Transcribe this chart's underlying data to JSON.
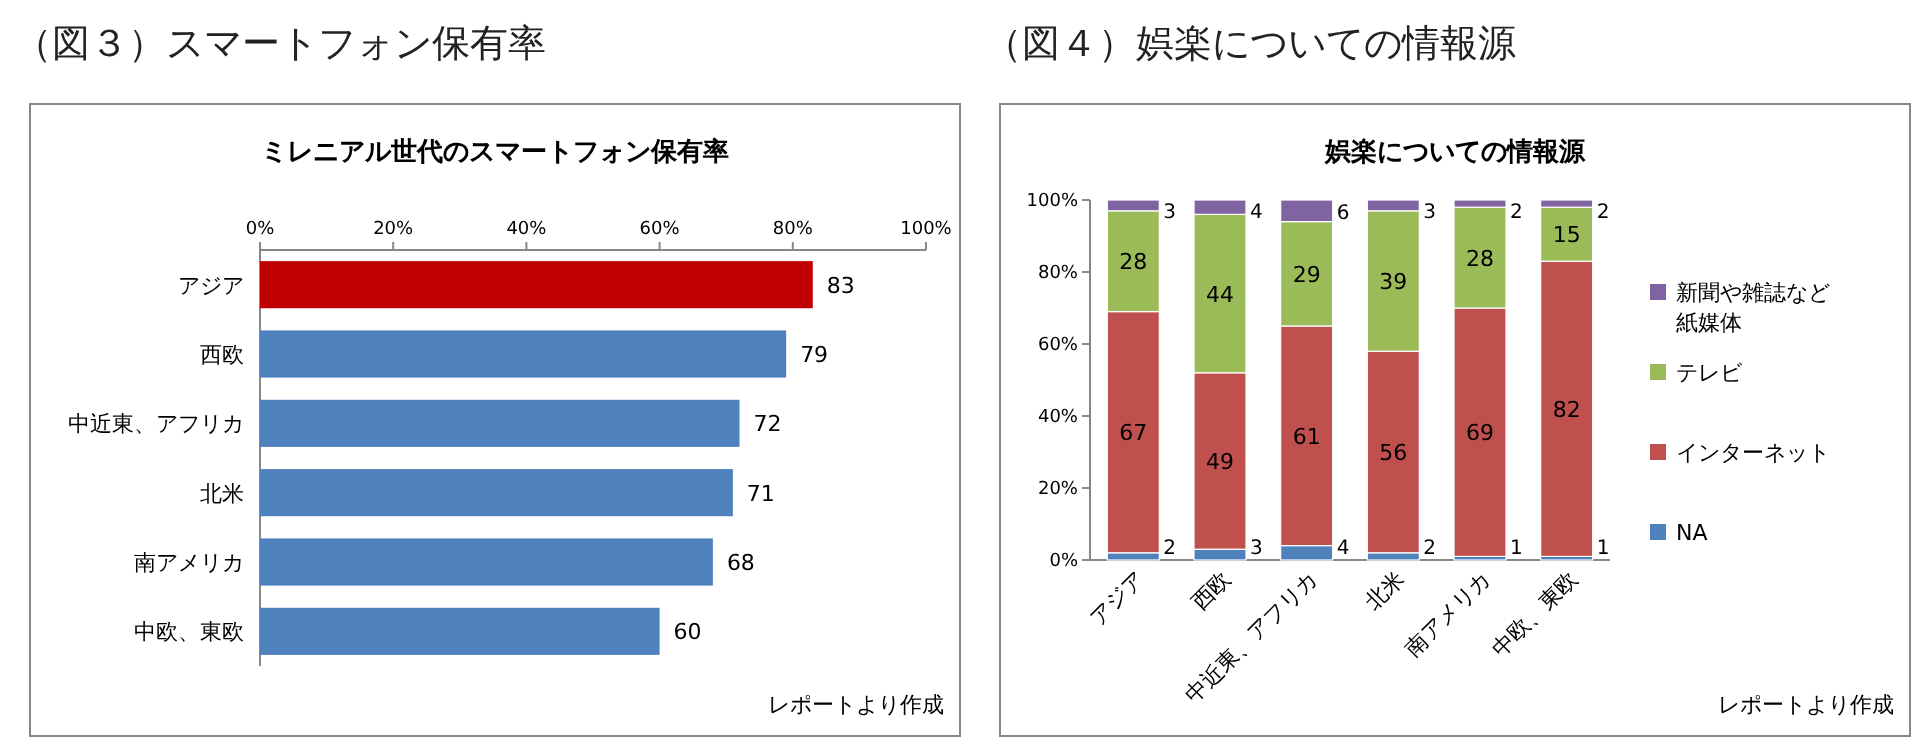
{
  "chart_data": [
    {
      "type": "bar",
      "orientation": "horizontal",
      "title": "（図３）スマートフォン保有率",
      "subtitle": "ミレニアル世代のスマートフォン保有率",
      "categories": [
        "アジア",
        "西欧",
        "中近東、アフリカ",
        "北米",
        "南アメリカ",
        "中欧、東欧"
      ],
      "values": [
        83,
        79,
        72,
        71,
        68,
        60
      ],
      "colors": [
        "#c00000",
        "#4f81bd",
        "#4f81bd",
        "#4f81bd",
        "#4f81bd",
        "#4f81bd"
      ],
      "xlim": [
        0,
        100
      ],
      "xticks": [
        {
          "value": 0,
          "label": "0%"
        },
        {
          "value": 20,
          "label": "20%"
        },
        {
          "value": 40,
          "label": "40%"
        },
        {
          "value": 60,
          "label": "60%"
        },
        {
          "value": 80,
          "label": "80%"
        },
        {
          "value": 100,
          "label": "100%"
        }
      ],
      "data_labels": true,
      "annotations": [
        "レポートより作成"
      ]
    },
    {
      "type": "bar",
      "stacked": true,
      "title": "（図４）娯楽についての情報源",
      "subtitle": "娯楽についての情報源",
      "categories": [
        "アジア",
        "西欧",
        "中近東、アフリカ",
        "北米",
        "南アメリカ",
        "中欧、東欧"
      ],
      "series": [
        {
          "name": "NA",
          "color": "#4f81bd",
          "values": [
            2,
            3,
            4,
            2,
            1,
            1
          ]
        },
        {
          "name": "インターネット",
          "color": "#c0504d",
          "values": [
            67,
            49,
            61,
            56,
            69,
            82
          ]
        },
        {
          "name": "テレビ",
          "color": "#9bbb59",
          "values": [
            28,
            44,
            29,
            39,
            28,
            15
          ]
        },
        {
          "name": "新聞や雑誌など紙媒体",
          "color": "#8064a2",
          "values": [
            3,
            4,
            6,
            3,
            2,
            2
          ]
        }
      ],
      "ylim": [
        0,
        100
      ],
      "yticks": [
        {
          "value": 0,
          "label": "0%"
        },
        {
          "value": 20,
          "label": "20%"
        },
        {
          "value": 40,
          "label": "40%"
        },
        {
          "value": 60,
          "label": "60%"
        },
        {
          "value": 80,
          "label": "80%"
        },
        {
          "value": 100,
          "label": "100%"
        }
      ],
      "data_labels": true,
      "legend": "right",
      "annotations": [
        "レポートより作成"
      ]
    }
  ]
}
